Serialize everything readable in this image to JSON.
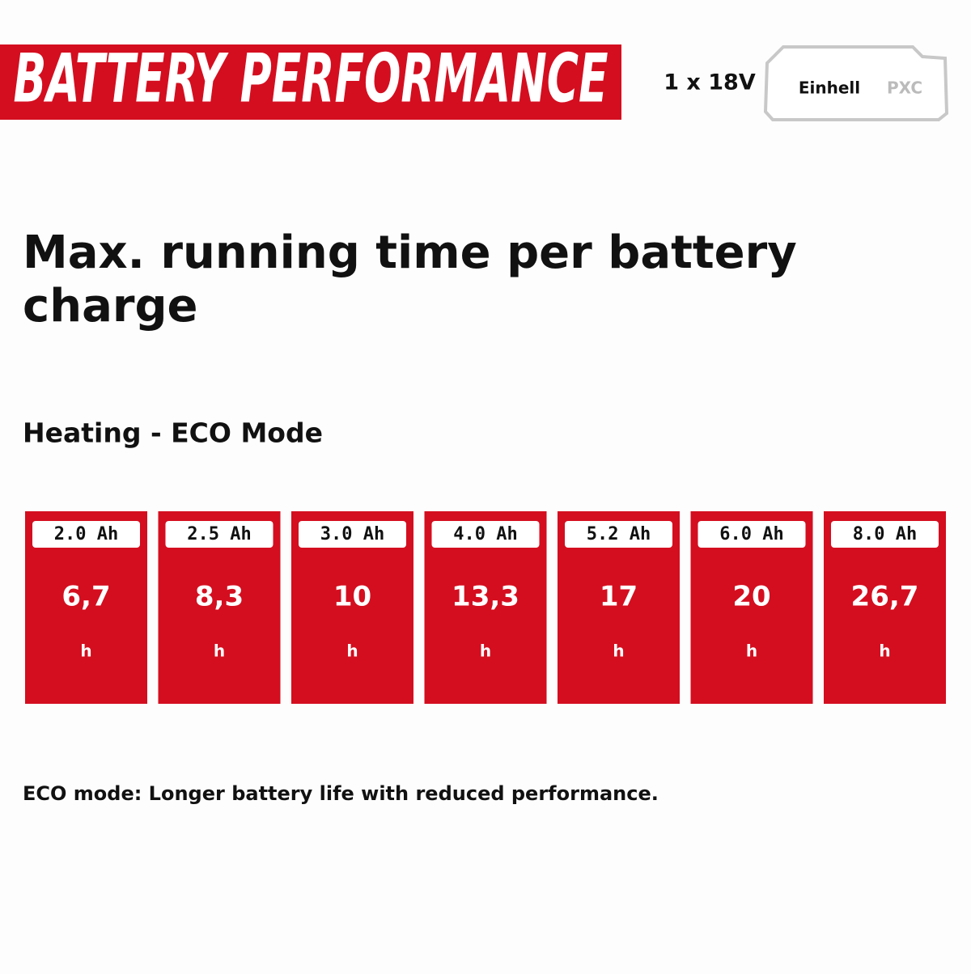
{
  "header": {
    "title": "BATTERY PERFORMANCE",
    "battery": "1 x 18V",
    "logo": {
      "brand": "Einhell",
      "platform": "PXC"
    }
  },
  "heading": "Max. running time per battery charge",
  "subheading": "Heating - ECO Mode",
  "cards": [
    {
      "capacity": "2.0 Ah",
      "value": "6,7",
      "unit": "h"
    },
    {
      "capacity": "2.5 Ah",
      "value": "8,3",
      "unit": "h"
    },
    {
      "capacity": "3.0 Ah",
      "value": "10",
      "unit": "h"
    },
    {
      "capacity": "4.0 Ah",
      "value": "13,3",
      "unit": "h"
    },
    {
      "capacity": "5.2 Ah",
      "value": "17",
      "unit": "h"
    },
    {
      "capacity": "6.0 Ah",
      "value": "20",
      "unit": "h"
    },
    {
      "capacity": "8.0 Ah",
      "value": "26,7",
      "unit": "h"
    }
  ],
  "footnote": "ECO mode: Longer battery life with reduced performance."
}
